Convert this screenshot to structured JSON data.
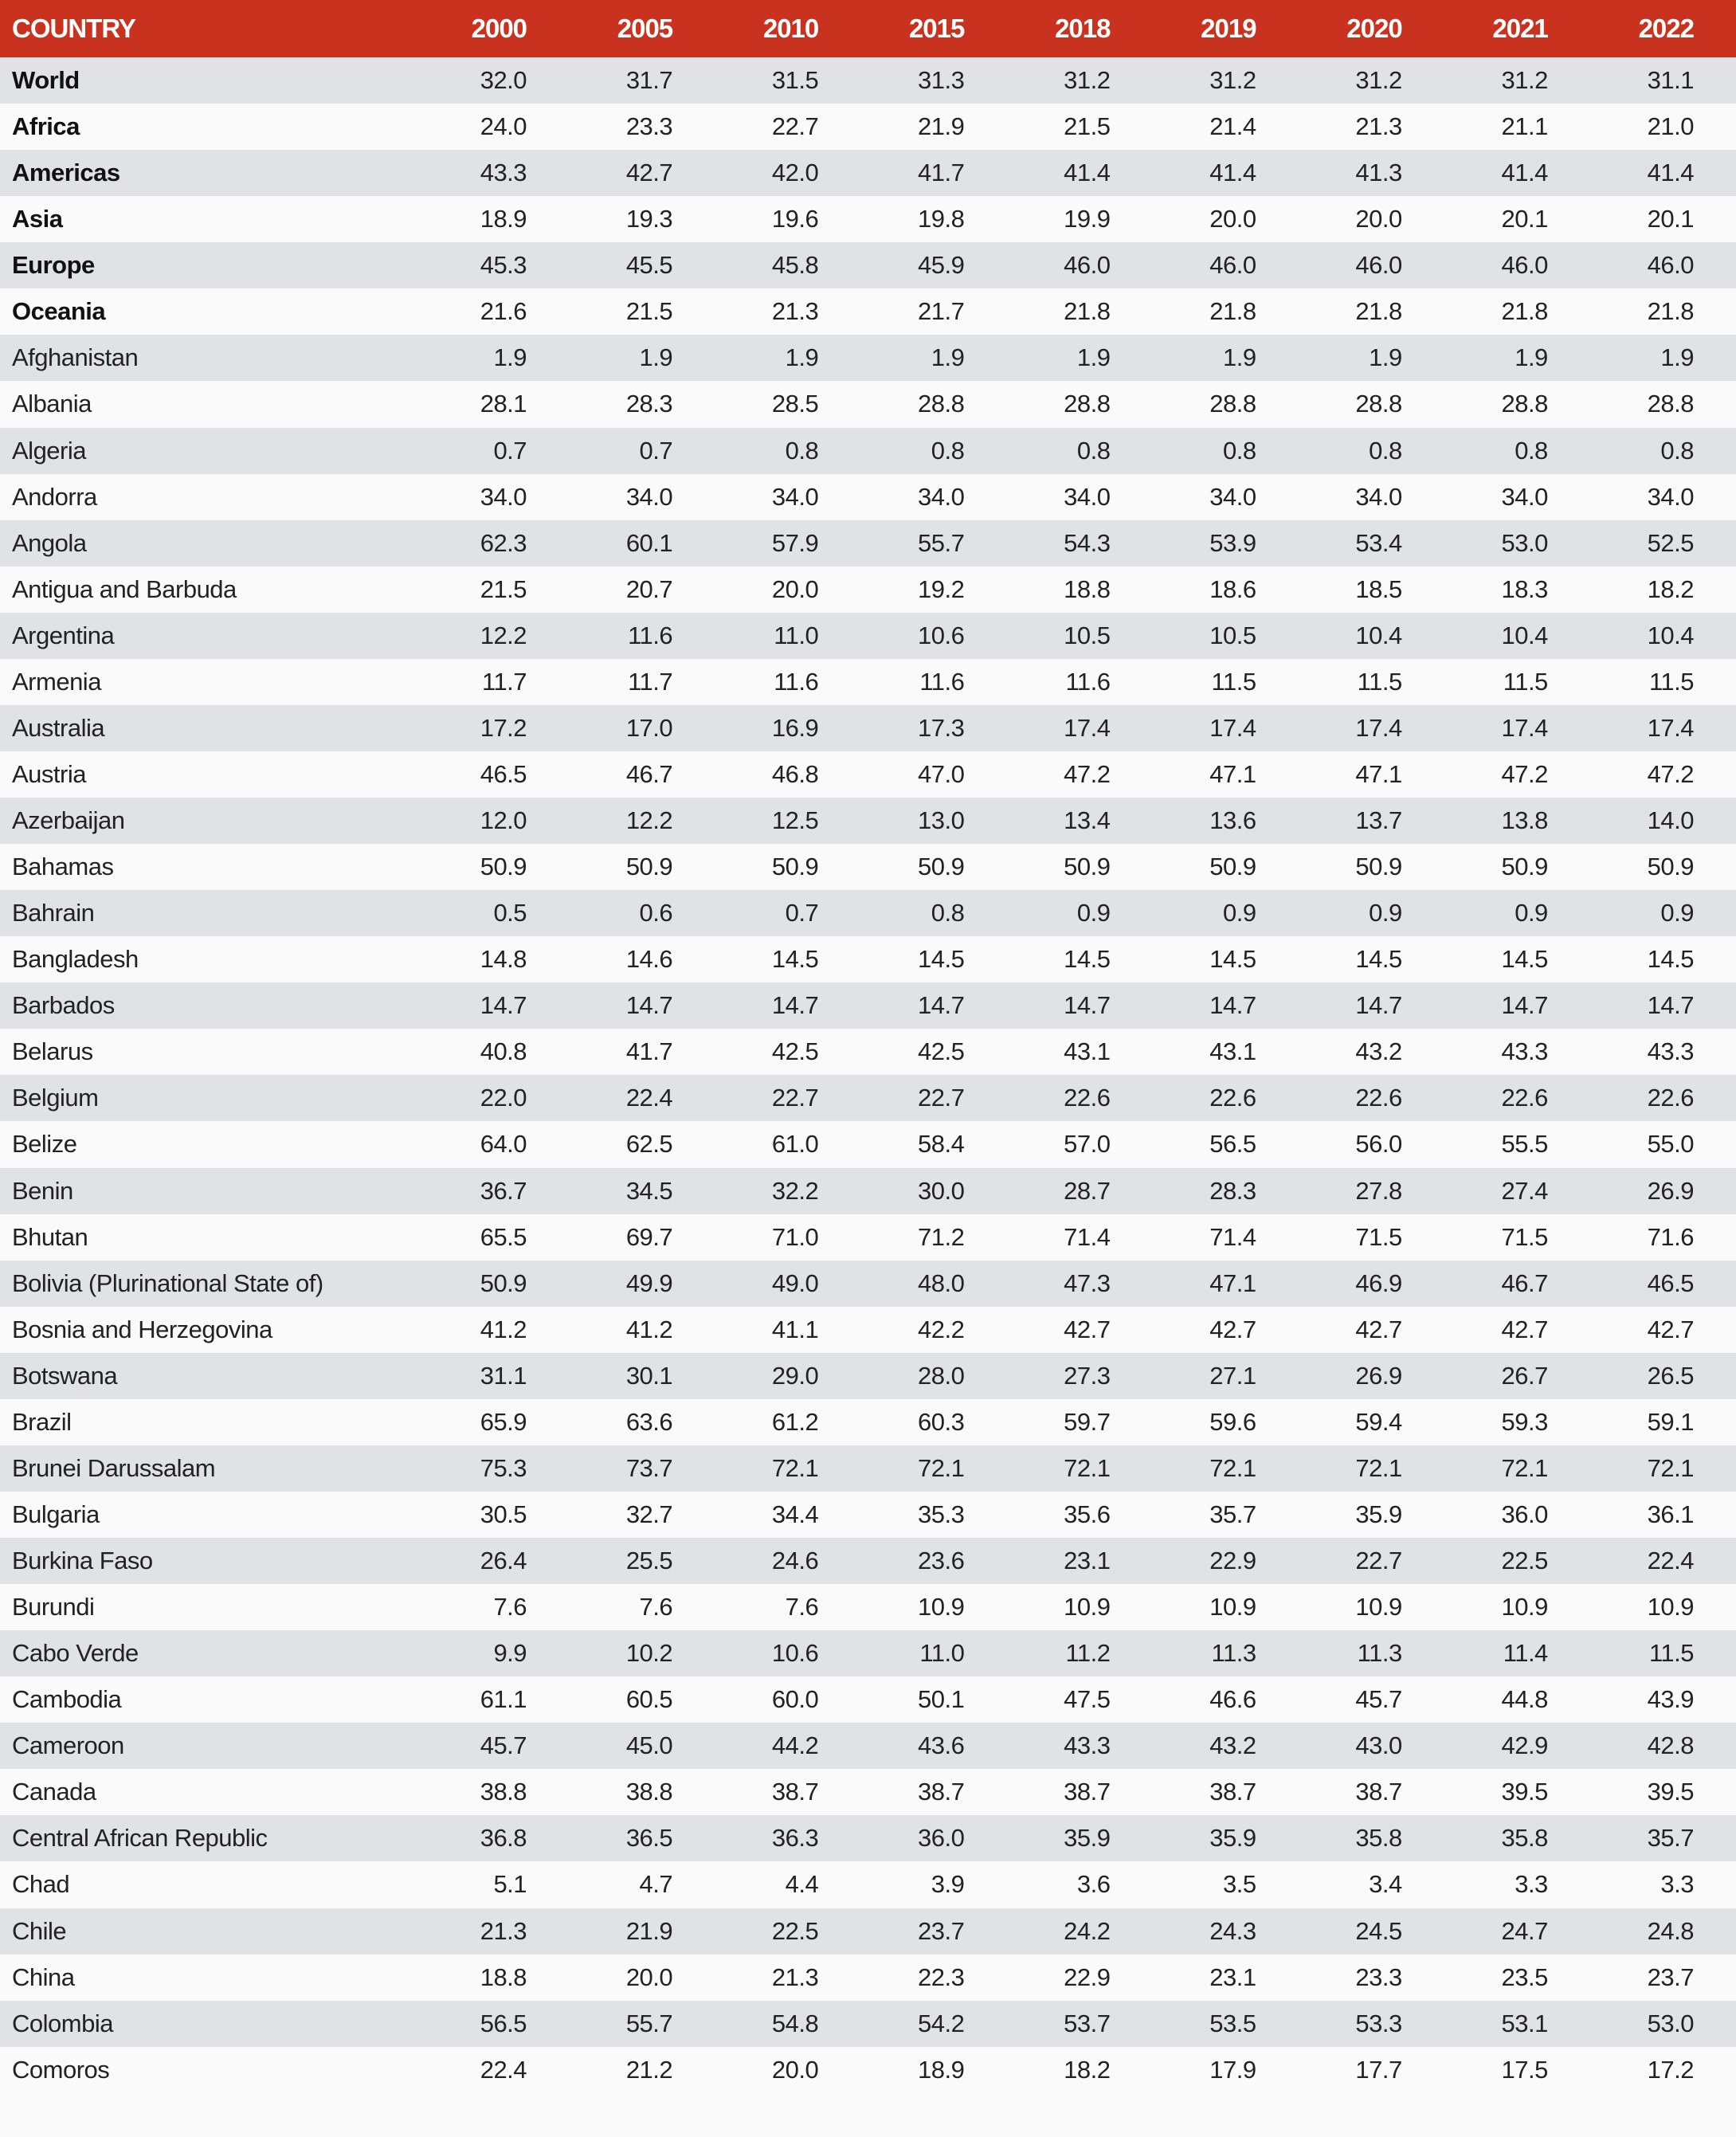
{
  "table": {
    "header": [
      "COUNTRY",
      "2000",
      "2005",
      "2010",
      "2015",
      "2018",
      "2019",
      "2020",
      "2021",
      "2022"
    ],
    "rows": [
      {
        "name": "World",
        "bold": true,
        "values": [
          "32.0",
          "31.7",
          "31.5",
          "31.3",
          "31.2",
          "31.2",
          "31.2",
          "31.2",
          "31.1"
        ]
      },
      {
        "name": "Africa",
        "bold": true,
        "values": [
          "24.0",
          "23.3",
          "22.7",
          "21.9",
          "21.5",
          "21.4",
          "21.3",
          "21.1",
          "21.0"
        ]
      },
      {
        "name": "Americas",
        "bold": true,
        "values": [
          "43.3",
          "42.7",
          "42.0",
          "41.7",
          "41.4",
          "41.4",
          "41.3",
          "41.4",
          "41.4"
        ]
      },
      {
        "name": "Asia",
        "bold": true,
        "values": [
          "18.9",
          "19.3",
          "19.6",
          "19.8",
          "19.9",
          "20.0",
          "20.0",
          "20.1",
          "20.1"
        ]
      },
      {
        "name": "Europe",
        "bold": true,
        "values": [
          "45.3",
          "45.5",
          "45.8",
          "45.9",
          "46.0",
          "46.0",
          "46.0",
          "46.0",
          "46.0"
        ]
      },
      {
        "name": "Oceania",
        "bold": true,
        "values": [
          "21.6",
          "21.5",
          "21.3",
          "21.7",
          "21.8",
          "21.8",
          "21.8",
          "21.8",
          "21.8"
        ]
      },
      {
        "name": "Afghanistan",
        "values": [
          "1.9",
          "1.9",
          "1.9",
          "1.9",
          "1.9",
          "1.9",
          "1.9",
          "1.9",
          "1.9"
        ]
      },
      {
        "name": "Albania",
        "values": [
          "28.1",
          "28.3",
          "28.5",
          "28.8",
          "28.8",
          "28.8",
          "28.8",
          "28.8",
          "28.8"
        ]
      },
      {
        "name": "Algeria",
        "values": [
          "0.7",
          "0.7",
          "0.8",
          "0.8",
          "0.8",
          "0.8",
          "0.8",
          "0.8",
          "0.8"
        ]
      },
      {
        "name": "Andorra",
        "values": [
          "34.0",
          "34.0",
          "34.0",
          "34.0",
          "34.0",
          "34.0",
          "34.0",
          "34.0",
          "34.0"
        ]
      },
      {
        "name": "Angola",
        "values": [
          "62.3",
          "60.1",
          "57.9",
          "55.7",
          "54.3",
          "53.9",
          "53.4",
          "53.0",
          "52.5"
        ]
      },
      {
        "name": "Antigua and Barbuda",
        "values": [
          "21.5",
          "20.7",
          "20.0",
          "19.2",
          "18.8",
          "18.6",
          "18.5",
          "18.3",
          "18.2"
        ]
      },
      {
        "name": "Argentina",
        "values": [
          "12.2",
          "11.6",
          "11.0",
          "10.6",
          "10.5",
          "10.5",
          "10.4",
          "10.4",
          "10.4"
        ]
      },
      {
        "name": "Armenia",
        "values": [
          "11.7",
          "11.7",
          "11.6",
          "11.6",
          "11.6",
          "11.5",
          "11.5",
          "11.5",
          "11.5"
        ]
      },
      {
        "name": "Australia",
        "values": [
          "17.2",
          "17.0",
          "16.9",
          "17.3",
          "17.4",
          "17.4",
          "17.4",
          "17.4",
          "17.4"
        ]
      },
      {
        "name": "Austria",
        "values": [
          "46.5",
          "46.7",
          "46.8",
          "47.0",
          "47.2",
          "47.1",
          "47.1",
          "47.2",
          "47.2"
        ]
      },
      {
        "name": "Azerbaijan",
        "values": [
          "12.0",
          "12.2",
          "12.5",
          "13.0",
          "13.4",
          "13.6",
          "13.7",
          "13.8",
          "14.0"
        ]
      },
      {
        "name": "Bahamas",
        "values": [
          "50.9",
          "50.9",
          "50.9",
          "50.9",
          "50.9",
          "50.9",
          "50.9",
          "50.9",
          "50.9"
        ]
      },
      {
        "name": "Bahrain",
        "values": [
          "0.5",
          "0.6",
          "0.7",
          "0.8",
          "0.9",
          "0.9",
          "0.9",
          "0.9",
          "0.9"
        ]
      },
      {
        "name": "Bangladesh",
        "values": [
          "14.8",
          "14.6",
          "14.5",
          "14.5",
          "14.5",
          "14.5",
          "14.5",
          "14.5",
          "14.5"
        ]
      },
      {
        "name": "Barbados",
        "values": [
          "14.7",
          "14.7",
          "14.7",
          "14.7",
          "14.7",
          "14.7",
          "14.7",
          "14.7",
          "14.7"
        ]
      },
      {
        "name": "Belarus",
        "values": [
          "40.8",
          "41.7",
          "42.5",
          "42.5",
          "43.1",
          "43.1",
          "43.2",
          "43.3",
          "43.3"
        ]
      },
      {
        "name": "Belgium",
        "values": [
          "22.0",
          "22.4",
          "22.7",
          "22.7",
          "22.6",
          "22.6",
          "22.6",
          "22.6",
          "22.6"
        ]
      },
      {
        "name": "Belize",
        "values": [
          "64.0",
          "62.5",
          "61.0",
          "58.4",
          "57.0",
          "56.5",
          "56.0",
          "55.5",
          "55.0"
        ]
      },
      {
        "name": "Benin",
        "values": [
          "36.7",
          "34.5",
          "32.2",
          "30.0",
          "28.7",
          "28.3",
          "27.8",
          "27.4",
          "26.9"
        ]
      },
      {
        "name": "Bhutan",
        "values": [
          "65.5",
          "69.7",
          "71.0",
          "71.2",
          "71.4",
          "71.4",
          "71.5",
          "71.5",
          "71.6"
        ]
      },
      {
        "name": "Bolivia (Plurinational State of)",
        "values": [
          "50.9",
          "49.9",
          "49.0",
          "48.0",
          "47.3",
          "47.1",
          "46.9",
          "46.7",
          "46.5"
        ]
      },
      {
        "name": "Bosnia and Herzegovina",
        "values": [
          "41.2",
          "41.2",
          "41.1",
          "42.2",
          "42.7",
          "42.7",
          "42.7",
          "42.7",
          "42.7"
        ]
      },
      {
        "name": "Botswana",
        "values": [
          "31.1",
          "30.1",
          "29.0",
          "28.0",
          "27.3",
          "27.1",
          "26.9",
          "26.7",
          "26.5"
        ]
      },
      {
        "name": "Brazil",
        "values": [
          "65.9",
          "63.6",
          "61.2",
          "60.3",
          "59.7",
          "59.6",
          "59.4",
          "59.3",
          "59.1"
        ]
      },
      {
        "name": "Brunei Darussalam",
        "values": [
          "75.3",
          "73.7",
          "72.1",
          "72.1",
          "72.1",
          "72.1",
          "72.1",
          "72.1",
          "72.1"
        ]
      },
      {
        "name": "Bulgaria",
        "values": [
          "30.5",
          "32.7",
          "34.4",
          "35.3",
          "35.6",
          "35.7",
          "35.9",
          "36.0",
          "36.1"
        ]
      },
      {
        "name": "Burkina Faso",
        "values": [
          "26.4",
          "25.5",
          "24.6",
          "23.6",
          "23.1",
          "22.9",
          "22.7",
          "22.5",
          "22.4"
        ]
      },
      {
        "name": "Burundi",
        "values": [
          "7.6",
          "7.6",
          "7.6",
          "10.9",
          "10.9",
          "10.9",
          "10.9",
          "10.9",
          "10.9"
        ]
      },
      {
        "name": "Cabo Verde",
        "values": [
          "9.9",
          "10.2",
          "10.6",
          "11.0",
          "11.2",
          "11.3",
          "11.3",
          "11.4",
          "11.5"
        ]
      },
      {
        "name": "Cambodia",
        "values": [
          "61.1",
          "60.5",
          "60.0",
          "50.1",
          "47.5",
          "46.6",
          "45.7",
          "44.8",
          "43.9"
        ]
      },
      {
        "name": "Cameroon",
        "values": [
          "45.7",
          "45.0",
          "44.2",
          "43.6",
          "43.3",
          "43.2",
          "43.0",
          "42.9",
          "42.8"
        ]
      },
      {
        "name": "Canada",
        "values": [
          "38.8",
          "38.8",
          "38.7",
          "38.7",
          "38.7",
          "38.7",
          "38.7",
          "39.5",
          "39.5"
        ]
      },
      {
        "name": "Central African Republic",
        "values": [
          "36.8",
          "36.5",
          "36.3",
          "36.0",
          "35.9",
          "35.9",
          "35.8",
          "35.8",
          "35.7"
        ]
      },
      {
        "name": "Chad",
        "values": [
          "5.1",
          "4.7",
          "4.4",
          "3.9",
          "3.6",
          "3.5",
          "3.4",
          "3.3",
          "3.3"
        ]
      },
      {
        "name": "Chile",
        "values": [
          "21.3",
          "21.9",
          "22.5",
          "23.7",
          "24.2",
          "24.3",
          "24.5",
          "24.7",
          "24.8"
        ]
      },
      {
        "name": "China",
        "values": [
          "18.8",
          "20.0",
          "21.3",
          "22.3",
          "22.9",
          "23.1",
          "23.3",
          "23.5",
          "23.7"
        ]
      },
      {
        "name": "Colombia",
        "values": [
          "56.5",
          "55.7",
          "54.8",
          "54.2",
          "53.7",
          "53.5",
          "53.3",
          "53.1",
          "53.0"
        ]
      },
      {
        "name": "Comoros",
        "values": [
          "22.4",
          "21.2",
          "20.0",
          "18.9",
          "18.2",
          "17.9",
          "17.7",
          "17.5",
          "17.2"
        ]
      }
    ]
  }
}
